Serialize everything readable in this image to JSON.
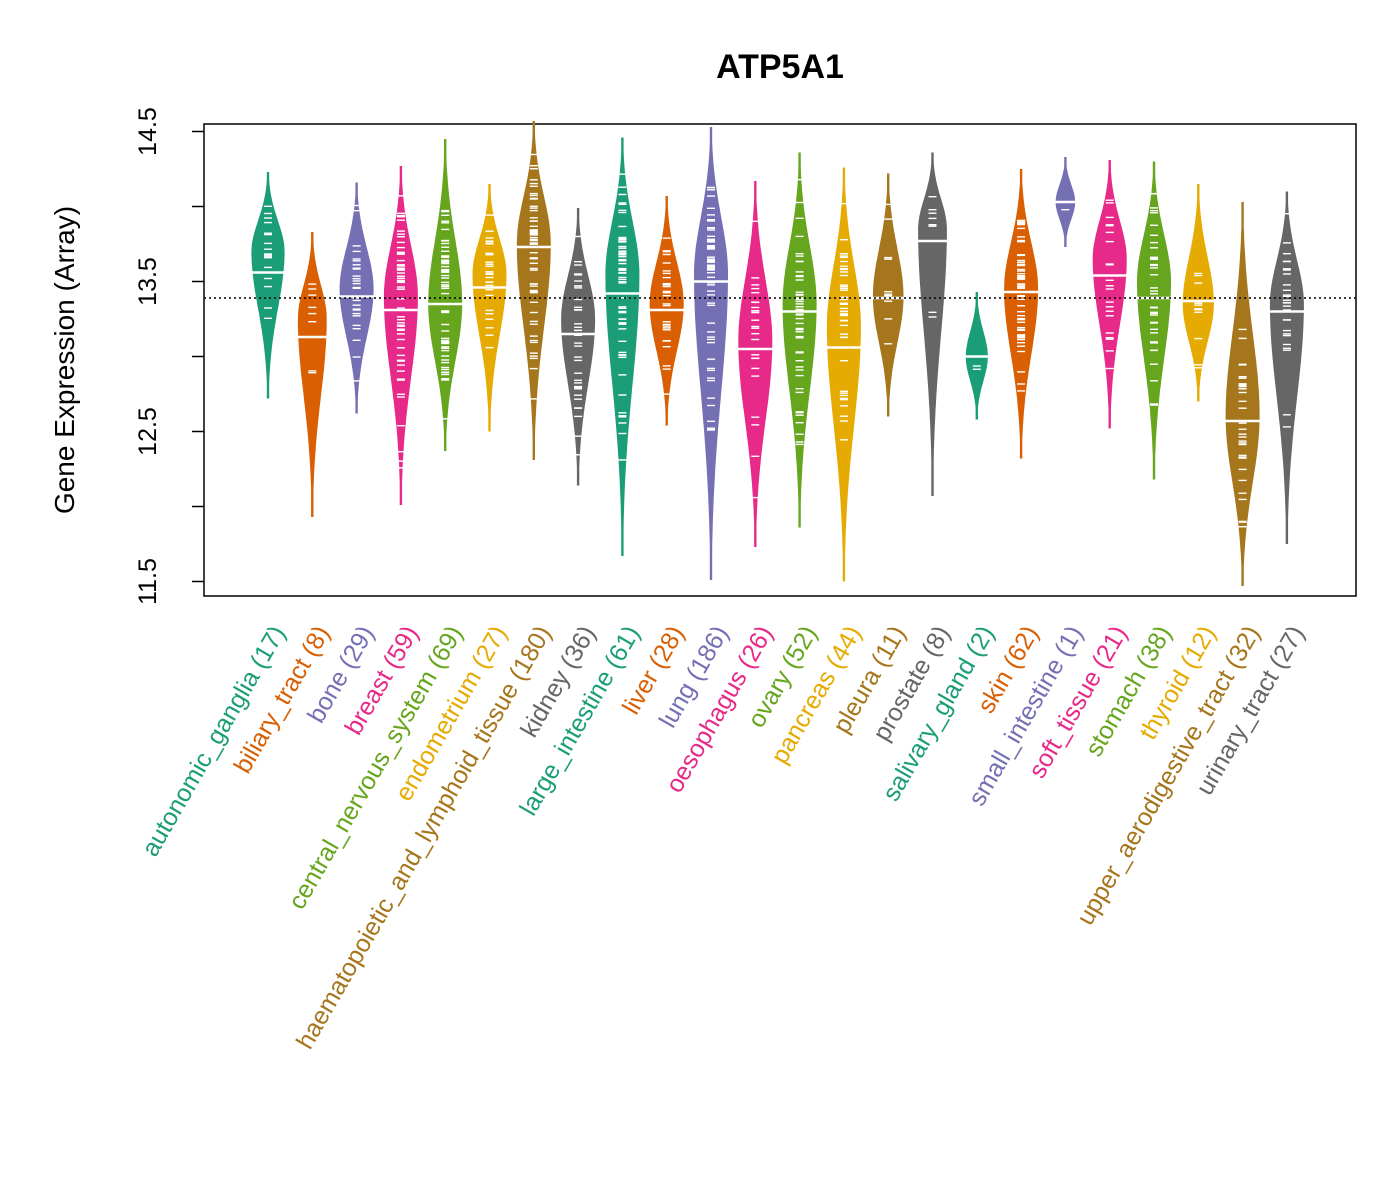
{
  "chart_data": {
    "type": "beanplot",
    "title": "ATP5A1",
    "ylabel": "Gene Expression (Array)",
    "xlabel": "",
    "ylim": [
      11.47,
      14.57
    ],
    "yticks": [
      11.5,
      12.5,
      13.5,
      14.5
    ],
    "reference_line": 13.39,
    "grid": false,
    "legend": "none",
    "categories": [
      {
        "name": "autonomic_ganglia",
        "n": 17,
        "label": "autonomic_ganglia (17)",
        "color": "#1B9E77",
        "median": 13.56,
        "min": 12.72,
        "max": 14.23,
        "mode": 13.7
      },
      {
        "name": "biliary_tract",
        "n": 8,
        "label": "biliary_tract (8)",
        "color": "#D95F02",
        "median": 13.13,
        "min": 11.93,
        "max": 13.83,
        "mode": 13.25
      },
      {
        "name": "bone",
        "n": 29,
        "label": "bone (29)",
        "color": "#7570B3",
        "median": 13.4,
        "min": 12.62,
        "max": 14.16,
        "mode": 13.45
      },
      {
        "name": "breast",
        "n": 59,
        "label": "breast (59)",
        "color": "#E7298A",
        "median": 13.31,
        "min": 12.01,
        "max": 14.27,
        "mode": 13.4
      },
      {
        "name": "central_nervous_system",
        "n": 69,
        "label": "central_nervous_system (69)",
        "color": "#66A61E",
        "median": 13.35,
        "min": 12.37,
        "max": 14.45,
        "mode": 13.35
      },
      {
        "name": "endometrium",
        "n": 27,
        "label": "endometrium (27)",
        "color": "#E6AB02",
        "median": 13.46,
        "min": 12.5,
        "max": 14.15,
        "mode": 13.55
      },
      {
        "name": "haematopoietic_and_lymphoid_tissue",
        "n": 180,
        "label": "haematopoietic_and_lymphoid_tissue (180)",
        "color": "#A6761D",
        "median": 13.73,
        "min": 12.31,
        "max": 14.57,
        "mode": 13.75
      },
      {
        "name": "kidney",
        "n": 36,
        "label": "kidney (36)",
        "color": "#666666",
        "median": 13.15,
        "min": 12.14,
        "max": 13.99,
        "mode": 13.25
      },
      {
        "name": "large_intestine",
        "n": 61,
        "label": "large_intestine (61)",
        "color": "#1B9E77",
        "median": 13.42,
        "min": 11.67,
        "max": 14.46,
        "mode": 13.55
      },
      {
        "name": "liver",
        "n": 28,
        "label": "liver (28)",
        "color": "#D95F02",
        "median": 13.31,
        "min": 12.54,
        "max": 14.07,
        "mode": 13.35
      },
      {
        "name": "lung",
        "n": 186,
        "label": "lung (186)",
        "color": "#7570B3",
        "median": 13.5,
        "min": 11.51,
        "max": 14.53,
        "mode": 13.55
      },
      {
        "name": "oesophagus",
        "n": 26,
        "label": "oesophagus (26)",
        "color": "#E7298A",
        "median": 13.05,
        "min": 11.73,
        "max": 14.17,
        "mode": 13.1
      },
      {
        "name": "ovary",
        "n": 52,
        "label": "ovary (52)",
        "color": "#66A61E",
        "median": 13.3,
        "min": 11.86,
        "max": 14.36,
        "mode": 13.35
      },
      {
        "name": "pancreas",
        "n": 44,
        "label": "pancreas (44)",
        "color": "#E6AB02",
        "median": 13.06,
        "min": 11.5,
        "max": 14.26,
        "mode": 13.2
      },
      {
        "name": "pleura",
        "n": 11,
        "label": "pleura (11)",
        "color": "#A6761D",
        "median": 13.39,
        "min": 12.6,
        "max": 14.22,
        "mode": 13.4
      },
      {
        "name": "prostate",
        "n": 8,
        "label": "prostate (8)",
        "color": "#666666",
        "median": 13.77,
        "min": 12.07,
        "max": 14.36,
        "mode": 13.85
      },
      {
        "name": "salivary_gland",
        "n": 2,
        "label": "salivary_gland (2)",
        "color": "#1B9E77",
        "median": 13.0,
        "min": 12.58,
        "max": 13.43,
        "mode": 13.0
      },
      {
        "name": "skin",
        "n": 62,
        "label": "skin (62)",
        "color": "#D95F02",
        "median": 13.43,
        "min": 12.32,
        "max": 14.25,
        "mode": 13.45
      },
      {
        "name": "small_intestine",
        "n": 1,
        "label": "small_intestine (1)",
        "color": "#7570B3",
        "median": 14.03,
        "min": 13.73,
        "max": 14.33,
        "mode": 14.03
      },
      {
        "name": "soft_tissue",
        "n": 21,
        "label": "soft_tissue (21)",
        "color": "#E7298A",
        "median": 13.54,
        "min": 12.52,
        "max": 14.31,
        "mode": 13.65
      },
      {
        "name": "stomach",
        "n": 38,
        "label": "stomach (38)",
        "color": "#66A61E",
        "median": 13.39,
        "min": 12.18,
        "max": 14.3,
        "mode": 13.5
      },
      {
        "name": "thyroid",
        "n": 12,
        "label": "thyroid (12)",
        "color": "#E6AB02",
        "median": 13.37,
        "min": 12.7,
        "max": 14.15,
        "mode": 13.35
      },
      {
        "name": "upper_aerodigestive_tract",
        "n": 32,
        "label": "upper_aerodigestive_tract (32)",
        "color": "#A6761D",
        "median": 12.57,
        "min": 11.47,
        "max": 14.03,
        "mode": 12.6
      },
      {
        "name": "urinary_tract",
        "n": 27,
        "label": "urinary_tract (27)",
        "color": "#666666",
        "median": 13.3,
        "min": 11.75,
        "max": 14.1,
        "mode": 13.35
      }
    ]
  }
}
